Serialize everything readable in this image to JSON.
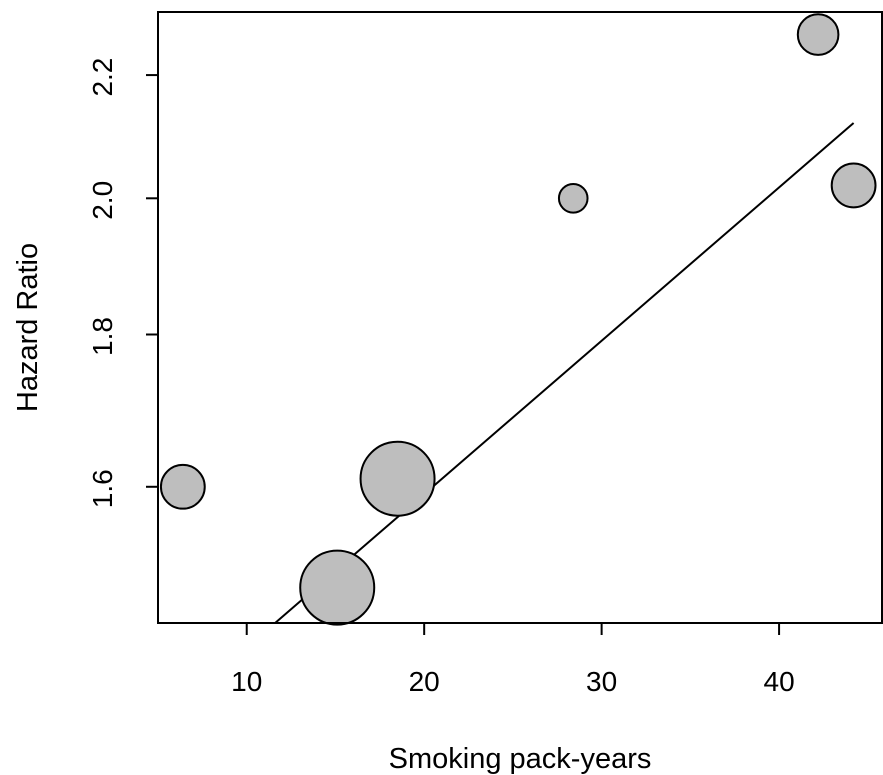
{
  "chart_data": {
    "type": "scatter",
    "title": "",
    "xlabel": "Smoking pack-years",
    "ylabel": "Hazard Ratio",
    "x_ticks": [
      10,
      20,
      30,
      40
    ],
    "x_tick_labels": [
      "10",
      "20",
      "30",
      "40"
    ],
    "y_ticks": [
      1.6,
      1.8,
      2.0,
      2.2
    ],
    "y_tick_labels": [
      "1.6",
      "1.8",
      "2.0",
      "2.2"
    ],
    "xlim": [
      5,
      45.8
    ],
    "ylim": [
      1.44,
      2.31
    ],
    "y_scale": "log",
    "grid": false,
    "legend": "none",
    "marker_fill": "#bebebe",
    "marker_edge": "#000000",
    "points": [
      {
        "x": 6.4,
        "y": 1.6,
        "weight": 0.35
      },
      {
        "x": 15.1,
        "y": 1.48,
        "weight": 1.0
      },
      {
        "x": 18.5,
        "y": 1.61,
        "weight": 1.0
      },
      {
        "x": 28.4,
        "y": 2.0,
        "weight": 0.15
      },
      {
        "x": 42.2,
        "y": 2.27,
        "weight": 0.3
      },
      {
        "x": 44.2,
        "y": 2.02,
        "weight": 0.35
      }
    ],
    "fit_line": {
      "x": [
        11.6,
        44.2
      ],
      "y": [
        1.44,
        2.12
      ]
    }
  }
}
